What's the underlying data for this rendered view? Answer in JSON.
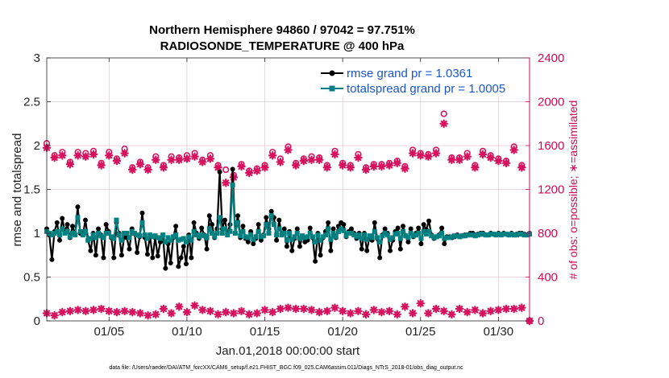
{
  "chart_data": {
    "type": "line",
    "title_line1": "Northern Hemisphere 94860 / 97042 = 97.751%",
    "title_line2": "RADIOSONDE_TEMPERATURE @ 400 hPa",
    "xlabel": "Jan.01,2018 00:00:00 start",
    "ylabel_left": "rmse and totalspread",
    "ylabel_right": "# of obs: o=possible; ∗=assimilated",
    "footnote": "data file: /Users/raeder/DAI/ATM_forcXX/CAM6_setup/f.e21.FHIST_BGC.f09_025.CAM6assim.011/Diags_NTrS_2018-01/obs_diag_output.nc",
    "xlim": [
      1,
      32
    ],
    "ylim_left": [
      0,
      3
    ],
    "ylim_right": [
      0,
      2400
    ],
    "x_ticks": [
      5,
      10,
      15,
      20,
      25,
      30
    ],
    "x_tick_labels": [
      "01/05",
      "01/10",
      "01/15",
      "01/20",
      "01/25",
      "01/30"
    ],
    "y_ticks_left": [
      0,
      0.5,
      1,
      1.5,
      2,
      2.5,
      3
    ],
    "y_tick_labels_left": [
      "0",
      "0.5",
      "1",
      "1.5",
      "2",
      "2.5",
      "3"
    ],
    "y_ticks_right": [
      0,
      400,
      800,
      1200,
      1600,
      2000,
      2400
    ],
    "y_tick_labels_right": [
      "0",
      "400",
      "800",
      "1200",
      "1600",
      "2000",
      "2400"
    ],
    "legend_position": "top-right",
    "series": [
      {
        "name": "rmse grand pr = 1.0361",
        "color": "#000000",
        "values": [
          1.05,
          0.98,
          0.7,
          1.02,
          1.12,
          0.92,
          1.17,
          1.02,
          1.1,
          0.95,
          1.08,
          0.98,
          1.3,
          1.0,
          0.98,
          1.15,
          0.92,
          0.8,
          1.0,
          0.75,
          1.05,
          0.98,
          0.72,
          1.1,
          1.02,
          0.95,
          0.72,
          1.12,
          1.0,
          0.75,
          0.96,
          0.95,
          0.82,
          1.05,
          1.0,
          0.78,
          0.96,
          1.23,
          0.95,
          0.76,
          0.98,
          0.72,
          0.95,
          0.74,
          0.9,
          0.98,
          0.6,
          0.88,
          0.66,
          0.95,
          1.08,
          0.62,
          0.72,
          0.85,
          0.65,
          0.98,
          0.72,
          1.12,
          1.0,
          0.94,
          1.06,
          0.98,
          0.82,
          1.2,
          1.1,
          0.95,
          1.05,
          1.7,
          1.05,
          1.15,
          1.0,
          1.1,
          1.73,
          1.0,
          1.2,
          0.95,
          1.08,
          0.94,
          0.9,
          1.02,
          0.88,
          0.94,
          1.1,
          0.92,
          0.98,
          1.18,
          1.05,
          1.25,
          1.18,
          0.92,
          1.15,
          0.98,
          1.05,
          0.85,
          1.02,
          0.8,
          0.94,
          1.05,
          0.85,
          0.96,
          0.9,
          0.92,
          1.06,
          0.95,
          0.68,
          1.0,
          0.75,
          0.95,
          1.02,
          1.12,
          0.8,
          1.05,
          0.95,
          1.08,
          1.12,
          1.1,
          0.96,
          1.02,
          1.05,
          1.0,
          0.94,
          1.0,
          0.82,
          1.0,
          0.8,
          0.96,
          0.92,
          1.12,
          0.94,
          0.72,
          0.98,
          1.05,
          1.0,
          0.8,
          0.92,
          1.02,
          1.06,
          0.82,
          1.08,
          0.97,
          0.9,
          1.05,
          0.96,
          1.0,
          1.06,
          0.88,
          1.1,
          1.04,
          1.14,
          0.98,
          0.94,
          0.96,
          0.98,
          1.06,
          0.88,
          0.96,
          0.96,
          0.95,
          0.96,
          0.98,
          0.96,
          0.97,
          0.98,
          0.98,
          1.0,
          1.0,
          0.98,
          0.99,
          1.0,
          1.0,
          0.98,
          0.98,
          1.0,
          0.99,
          0.98,
          1.0,
          0.98,
          1.0,
          0.99,
          0.98,
          1.0,
          0.98,
          0.99,
          1.0,
          1.0,
          0.99,
          0.98,
          1.0
        ]
      },
      {
        "name": "totalspread grand pr = 1.0005",
        "color": "#008080",
        "values": [
          1.02,
          1.0,
          0.98,
          1.0,
          1.02,
          0.98,
          1.05,
          1.0,
          1.02,
          0.96,
          1.0,
          0.98,
          1.18,
          1.02,
          0.98,
          1.02,
          0.92,
          0.94,
          0.98,
          0.95,
          1.0,
          0.97,
          0.95,
          1.0,
          1.0,
          0.96,
          0.94,
          1.15,
          0.98,
          0.92,
          1.0,
          1.0,
          0.95,
          1.02,
          1.0,
          0.98,
          0.97,
          1.12,
          0.98,
          0.94,
          0.98,
          0.96,
          0.97,
          0.95,
          0.94,
          0.98,
          0.9,
          0.95,
          0.92,
          0.96,
          0.98,
          0.92,
          0.93,
          0.94,
          0.9,
          0.96,
          0.92,
          1.02,
          0.98,
          0.96,
          0.98,
          0.97,
          0.95,
          1.05,
          1.0,
          0.96,
          1.0,
          1.18,
          1.0,
          1.05,
          0.98,
          1.02,
          1.55,
          1.0,
          1.12,
          0.97,
          1.02,
          0.96,
          0.95,
          0.98,
          0.93,
          0.96,
          1.02,
          0.96,
          0.97,
          1.1,
          1.0,
          1.2,
          1.1,
          0.98,
          1.05,
          0.98,
          1.0,
          0.92,
          1.0,
          0.93,
          0.96,
          1.0,
          0.94,
          0.97,
          0.95,
          0.96,
          1.0,
          0.96,
          0.9,
          0.98,
          0.92,
          0.96,
          0.98,
          1.05,
          0.93,
          1.0,
          0.96,
          1.02,
          1.05,
          1.03,
          0.97,
          1.0,
          1.0,
          0.98,
          0.96,
          0.98,
          0.94,
          0.98,
          0.93,
          0.97,
          0.95,
          1.02,
          0.95,
          0.9,
          0.97,
          1.0,
          0.98,
          0.93,
          0.95,
          0.99,
          1.0,
          0.94,
          1.02,
          0.97,
          0.95,
          1.0,
          0.97,
          0.98,
          1.0,
          0.94,
          1.02,
          0.99,
          1.02,
          0.97,
          0.95,
          0.96,
          0.97,
          1.0,
          0.94,
          0.95,
          0.95,
          0.96,
          0.97,
          0.97,
          0.96,
          0.97,
          0.97,
          0.98,
          0.98,
          0.98,
          0.97,
          0.98,
          0.99,
          0.99,
          0.98,
          0.98,
          0.99,
          0.99,
          0.98,
          0.99,
          0.98,
          0.99,
          0.99,
          0.98,
          0.99,
          0.98,
          0.98,
          0.99,
          0.99,
          0.98,
          0.98,
          0.99
        ]
      }
    ],
    "obs_color": "#d6125f",
    "obs_x": [
      1,
      1.5,
      2,
      2.5,
      3,
      3.5,
      4,
      4.5,
      5,
      5.5,
      6,
      6.5,
      7,
      7.5,
      8,
      8.5,
      9,
      9.5,
      10,
      10.5,
      11,
      11.5,
      12,
      12.5,
      13,
      13.5,
      14,
      14.5,
      15,
      15.5,
      16,
      16.5,
      17,
      17.5,
      18,
      18.5,
      19,
      19.5,
      20,
      20.5,
      21,
      21.5,
      22,
      22.5,
      23,
      23.5,
      24,
      24.5,
      25,
      25.5,
      26,
      26.5,
      27,
      27.5,
      28,
      28.5,
      29,
      29.5,
      30,
      30.5,
      31,
      31.5,
      32
    ],
    "obs_possible": [
      1620,
      1510,
      1540,
      1450,
      1540,
      1530,
      1550,
      1440,
      1540,
      1480,
      1570,
      1400,
      1450,
      1400,
      1500,
      1420,
      1500,
      1490,
      1510,
      1530,
      1470,
      1510,
      1420,
      1380,
      1330,
      1430,
      1370,
      1390,
      1420,
      1540,
      1480,
      1590,
      1440,
      1480,
      1500,
      1490,
      1420,
      1550,
      1440,
      1420,
      1520,
      1400,
      1430,
      1430,
      1440,
      1460,
      1410,
      1560,
      1530,
      1520,
      1560,
      1890,
      1490,
      1490,
      1530,
      1420,
      1550,
      1510,
      1480,
      1460,
      1590,
      1420,
      0
    ],
    "obs_assimilated": [
      1580,
      1490,
      1510,
      1430,
      1510,
      1500,
      1520,
      1420,
      1510,
      1460,
      1530,
      1380,
      1430,
      1380,
      1470,
      1400,
      1470,
      1470,
      1480,
      1500,
      1450,
      1480,
      1400,
      1260,
      1310,
      1410,
      1350,
      1370,
      1400,
      1510,
      1450,
      1560,
      1420,
      1460,
      1470,
      1470,
      1400,
      1520,
      1420,
      1400,
      1490,
      1380,
      1410,
      1410,
      1420,
      1440,
      1390,
      1530,
      1510,
      1500,
      1530,
      1800,
      1470,
      1470,
      1500,
      1400,
      1520,
      1490,
      1460,
      1440,
      1560,
      1400,
      0
    ],
    "obs_low_assimilated": [
      70,
      50,
      80,
      90,
      100,
      90,
      100,
      110,
      90,
      80,
      90,
      80,
      70,
      50,
      60,
      110,
      70,
      130,
      80,
      140,
      100,
      90,
      60,
      80,
      70,
      90,
      60,
      70,
      100,
      80,
      110,
      120,
      110,
      110,
      100,
      80,
      90,
      120,
      90,
      70,
      90,
      60,
      100,
      80,
      90,
      60,
      130,
      70,
      160,
      70,
      110,
      90,
      60,
      110,
      80,
      100,
      70,
      90,
      100,
      110,
      110,
      120,
      0
    ]
  }
}
